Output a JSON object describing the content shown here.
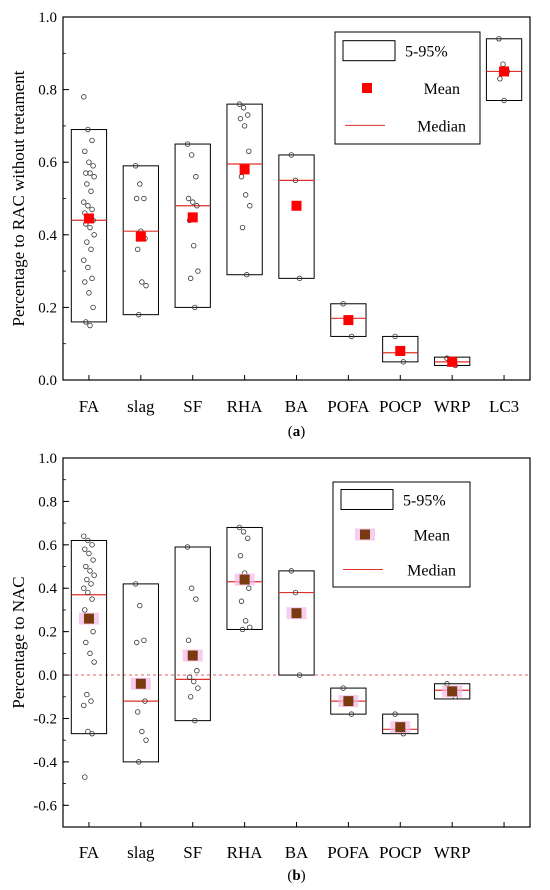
{
  "chart_data": [
    {
      "type": "box",
      "panel_label": "(a)",
      "panel_letter": "a",
      "ylabel": "Percentage to RAC without tretament",
      "ylim": [
        0,
        1.0
      ],
      "yticks": [
        "0.0",
        "0.2",
        "0.4",
        "0.6",
        "0.8",
        "1.0"
      ],
      "reference_line": 0,
      "legend": {
        "placement": "top-right",
        "box_label": "5-95%",
        "mean_label": "Mean",
        "median_label": "Median"
      },
      "colors": {
        "mean": "#ff0000",
        "median": "#e0302a",
        "reference": "#e06060",
        "points": "#333333"
      },
      "categories": [
        {
          "name": "FA",
          "low": 0.16,
          "high": 0.69,
          "median": 0.44,
          "mean": 0.445,
          "points": [
            0.78,
            0.69,
            0.66,
            0.63,
            0.6,
            0.59,
            0.57,
            0.57,
            0.56,
            0.54,
            0.52,
            0.49,
            0.48,
            0.47,
            0.46,
            0.45,
            0.44,
            0.43,
            0.42,
            0.4,
            0.38,
            0.36,
            0.33,
            0.31,
            0.28,
            0.27,
            0.24,
            0.2,
            0.16,
            0.15
          ]
        },
        {
          "name": "slag",
          "low": 0.18,
          "high": 0.59,
          "median": 0.41,
          "mean": 0.395,
          "points": [
            0.59,
            0.54,
            0.5,
            0.5,
            0.41,
            0.39,
            0.36,
            0.27,
            0.26,
            0.18
          ]
        },
        {
          "name": "SF",
          "low": 0.2,
          "high": 0.65,
          "median": 0.48,
          "mean": 0.448,
          "points": [
            0.65,
            0.62,
            0.56,
            0.5,
            0.49,
            0.48,
            0.44,
            0.37,
            0.3,
            0.28,
            0.2
          ]
        },
        {
          "name": "RHA",
          "low": 0.29,
          "high": 0.76,
          "median": 0.595,
          "mean": 0.58,
          "points": [
            0.76,
            0.75,
            0.73,
            0.72,
            0.7,
            0.63,
            0.56,
            0.51,
            0.48,
            0.42,
            0.29
          ]
        },
        {
          "name": "BA",
          "low": 0.28,
          "high": 0.62,
          "median": 0.55,
          "mean": 0.48,
          "points": [
            0.62,
            0.55,
            0.28
          ]
        },
        {
          "name": "POFA",
          "low": 0.12,
          "high": 0.21,
          "median": 0.17,
          "mean": 0.165,
          "points": [
            0.21,
            0.17,
            0.12
          ]
        },
        {
          "name": "POCP",
          "low": 0.05,
          "high": 0.12,
          "median": 0.075,
          "mean": 0.08,
          "points": [
            0.12,
            0.075,
            0.05
          ]
        },
        {
          "name": "WRP",
          "low": 0.04,
          "high": 0.063,
          "median": 0.05,
          "mean": 0.05,
          "points": [
            0.06,
            0.05,
            0.04
          ]
        },
        {
          "name": "LC3",
          "low": 0.77,
          "high": 0.94,
          "median": 0.85,
          "mean": 0.85,
          "points": [
            0.94,
            0.87,
            0.85,
            0.83,
            0.77
          ]
        }
      ]
    },
    {
      "type": "box",
      "panel_label": "(b)",
      "panel_letter": "b",
      "ylabel": "Percentage to NAC",
      "ylim": [
        -0.7,
        1.0
      ],
      "yticks": [
        "-0.6",
        "-0.4",
        "-0.2",
        "0.0",
        "0.2",
        "0.4",
        "0.6",
        "0.8",
        "1.0"
      ],
      "reference_line": 0,
      "legend": {
        "placement": "top-right",
        "box_label": "5-95%",
        "mean_label": "Mean",
        "median_label": "Median"
      },
      "colors": {
        "mean": "#7a3a10",
        "mean_halo": "#f4b8e8",
        "median": "#e0302a",
        "reference": "#e06060",
        "points": "#333333"
      },
      "categories": [
        {
          "name": "FA",
          "low": -0.27,
          "high": 0.62,
          "median": 0.37,
          "mean": 0.26,
          "points": [
            0.64,
            0.62,
            0.6,
            0.58,
            0.56,
            0.53,
            0.5,
            0.48,
            0.46,
            0.44,
            0.42,
            0.4,
            0.38,
            0.35,
            0.3,
            0.25,
            0.2,
            0.15,
            0.1,
            0.06,
            -0.09,
            -0.12,
            -0.14,
            -0.26,
            -0.27,
            -0.47
          ]
        },
        {
          "name": "slag",
          "low": -0.4,
          "high": 0.42,
          "median": -0.12,
          "mean": -0.04,
          "points": [
            0.42,
            0.32,
            0.16,
            0.15,
            -0.05,
            -0.12,
            -0.17,
            -0.26,
            -0.3,
            -0.4
          ]
        },
        {
          "name": "SF",
          "low": -0.21,
          "high": 0.59,
          "median": -0.02,
          "mean": 0.09,
          "points": [
            0.59,
            0.4,
            0.35,
            0.16,
            0.09,
            0.02,
            -0.01,
            -0.03,
            -0.06,
            -0.1,
            -0.21
          ]
        },
        {
          "name": "RHA",
          "low": 0.21,
          "high": 0.68,
          "median": 0.43,
          "mean": 0.44,
          "points": [
            0.68,
            0.66,
            0.63,
            0.55,
            0.47,
            0.4,
            0.34,
            0.25,
            0.22,
            0.21
          ]
        },
        {
          "name": "BA",
          "low": 0.0,
          "high": 0.48,
          "median": 0.38,
          "mean": 0.285,
          "points": [
            0.48,
            0.38,
            0.0
          ]
        },
        {
          "name": "POFA",
          "low": -0.18,
          "high": -0.06,
          "median": -0.12,
          "mean": -0.12,
          "points": [
            -0.06,
            -0.12,
            -0.18
          ]
        },
        {
          "name": "POCP",
          "low": -0.27,
          "high": -0.18,
          "median": -0.25,
          "mean": -0.24,
          "points": [
            -0.18,
            -0.25,
            -0.27
          ]
        },
        {
          "name": "WRP",
          "low": -0.11,
          "high": -0.04,
          "median": -0.07,
          "mean": -0.075,
          "points": [
            -0.04,
            -0.07,
            -0.1
          ]
        }
      ]
    }
  ]
}
